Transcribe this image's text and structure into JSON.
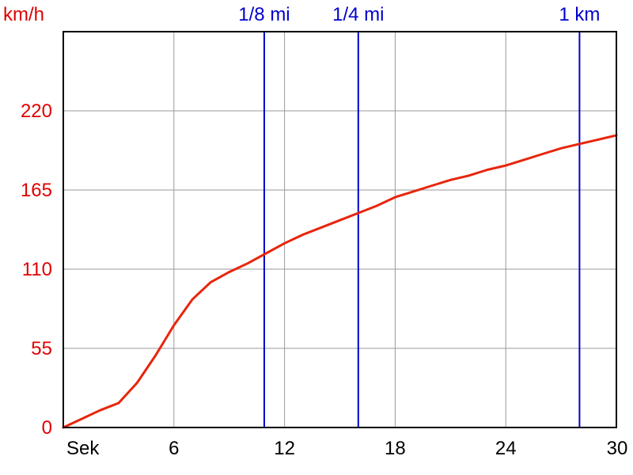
{
  "chart_data": {
    "type": "line",
    "ylabel": "km/h",
    "xlabel": "Sek",
    "xlim": [
      0,
      30
    ],
    "ylim": [
      0,
      275
    ],
    "grid": true,
    "x_ticks": [
      {
        "value": 0,
        "label": "Sek"
      },
      {
        "value": 6,
        "label": "6"
      },
      {
        "value": 12,
        "label": "12"
      },
      {
        "value": 18,
        "label": "18"
      },
      {
        "value": 24,
        "label": "24"
      },
      {
        "value": 30,
        "label": "30"
      }
    ],
    "y_ticks": [
      {
        "value": 0,
        "label": "0"
      },
      {
        "value": 55,
        "label": "55"
      },
      {
        "value": 110,
        "label": "110"
      },
      {
        "value": 165,
        "label": "165"
      },
      {
        "value": 220,
        "label": "220"
      }
    ],
    "markers": [
      {
        "x": 10.9,
        "label": "1/8 mi"
      },
      {
        "x": 16.0,
        "label": "1/4 mi"
      },
      {
        "x": 28.0,
        "label": "1 km"
      }
    ],
    "series": [
      {
        "x": [
          0,
          1,
          2,
          3,
          4,
          5,
          6,
          7,
          8,
          9,
          10,
          11,
          12,
          13,
          14,
          15,
          16,
          17,
          18,
          19,
          20,
          21,
          22,
          23,
          24,
          25,
          26,
          27,
          28,
          29,
          30
        ],
        "values": [
          0,
          6,
          12,
          17,
          31,
          50,
          71,
          89,
          101,
          108,
          114,
          121,
          128,
          134,
          139,
          144,
          149,
          154,
          160,
          164,
          168,
          172,
          175,
          179,
          182,
          186,
          190,
          194,
          197,
          200,
          203
        ]
      }
    ],
    "colors": {
      "line": "#e8250c",
      "marker": "#0000cc",
      "grid": "#9a9a9a",
      "axis": "#000000",
      "y_tick": "#e00000"
    }
  }
}
